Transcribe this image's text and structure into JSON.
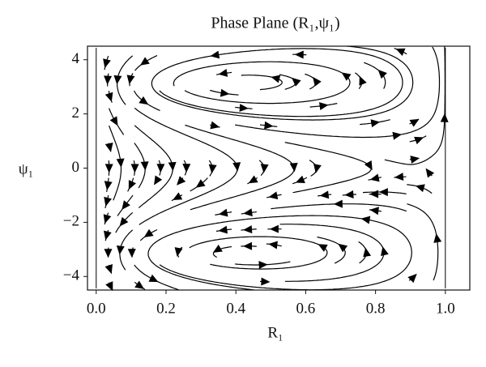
{
  "chart_data": {
    "type": "streamplot",
    "title": "Phase Plane (R₁,ψ₁)",
    "x_label": "R₁",
    "y_label": "ψ₁",
    "xlim": [
      -0.025,
      1.07
    ],
    "ylim": [
      -4.5,
      4.5
    ],
    "xticks": [
      {
        "value": 0,
        "label": "0.0"
      },
      {
        "value": 0.2,
        "label": "0.2"
      },
      {
        "value": 0.4,
        "label": "0.4"
      },
      {
        "value": 0.6,
        "label": "0.6"
      },
      {
        "value": 0.8,
        "label": "0.8"
      },
      {
        "value": 1,
        "label": "1.0"
      }
    ],
    "yticks": [
      {
        "value": -4,
        "label": "−4"
      },
      {
        "value": -2,
        "label": "−2"
      },
      0,
      2,
      4
    ],
    "color": "#000000"
  }
}
